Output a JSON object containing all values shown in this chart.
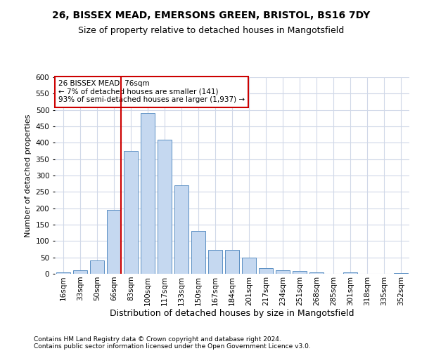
{
  "title_line1": "26, BISSEX MEAD, EMERSONS GREEN, BRISTOL, BS16 7DY",
  "title_line2": "Size of property relative to detached houses in Mangotsfield",
  "xlabel": "Distribution of detached houses by size in Mangotsfield",
  "ylabel": "Number of detached properties",
  "annotation_line1": "26 BISSEX MEAD: 76sqm",
  "annotation_line2": "← 7% of detached houses are smaller (141)",
  "annotation_line3": "93% of semi-detached houses are larger (1,937) →",
  "footer_line1": "Contains HM Land Registry data © Crown copyright and database right 2024.",
  "footer_line2": "Contains public sector information licensed under the Open Government Licence v3.0.",
  "bar_color": "#c5d8f0",
  "bar_edge_color": "#5a8fc3",
  "marker_line_color": "#cc0000",
  "annotation_box_edge_color": "#cc0000",
  "background_color": "#ffffff",
  "grid_color": "#d0d8e8",
  "categories": [
    "16sqm",
    "33sqm",
    "50sqm",
    "66sqm",
    "83sqm",
    "100sqm",
    "117sqm",
    "133sqm",
    "150sqm",
    "167sqm",
    "184sqm",
    "201sqm",
    "217sqm",
    "234sqm",
    "251sqm",
    "268sqm",
    "285sqm",
    "301sqm",
    "318sqm",
    "335sqm",
    "352sqm"
  ],
  "values": [
    5,
    10,
    40,
    195,
    375,
    490,
    410,
    270,
    130,
    73,
    73,
    50,
    18,
    10,
    8,
    5,
    0,
    5,
    0,
    0,
    2
  ],
  "marker_bin_index": 3,
  "ylim": [
    0,
    600
  ],
  "yticks": [
    0,
    50,
    100,
    150,
    200,
    250,
    300,
    350,
    400,
    450,
    500,
    550,
    600
  ],
  "title1_fontsize": 10,
  "title2_fontsize": 9,
  "xlabel_fontsize": 9,
  "ylabel_fontsize": 8,
  "tick_fontsize": 7.5,
  "annotation_fontsize": 7.5,
  "footer_fontsize": 6.5
}
